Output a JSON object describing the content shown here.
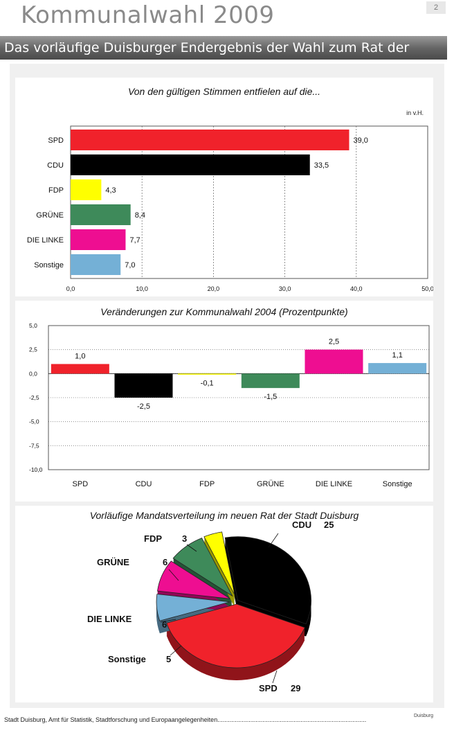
{
  "header": {
    "title": "Kommunalwahl 2009",
    "page_number": "2",
    "banner": "Das vorläufige Duisburger Endergebnis der Wahl zum Rat der Stadt"
  },
  "footer": {
    "source": "Stadt Duisburg, Amt für Statistik, Stadtforschung und Europaangelegenheiten......................................................................................",
    "logo": "Duisburg"
  },
  "colors": {
    "SPD": "#f0222b",
    "CDU": "#000000",
    "FDP": "#ffff00",
    "GRÜNE": "#3e8a5a",
    "DIE LINKE": "#ee0e91",
    "Sonstige": "#74b0d6"
  },
  "chart_data": [
    {
      "type": "bar",
      "orientation": "horizontal",
      "title": "Von den gültigen Stimmen entfielen auf die...",
      "unit_label": "in v.H.",
      "categories": [
        "SPD",
        "CDU",
        "FDP",
        "GRÜNE",
        "DIE  LINKE",
        "Sonstige"
      ],
      "values": [
        39.0,
        33.5,
        4.3,
        8.4,
        7.7,
        7.0
      ],
      "value_labels": [
        "39,0",
        "33,5",
        "4,3",
        "8,4",
        "7,7",
        "7,0"
      ],
      "xlim": [
        0,
        50
      ],
      "ticks": [
        0,
        10,
        20,
        30,
        40,
        50
      ],
      "tick_labels": [
        "0,0",
        "10,0",
        "20,0",
        "30,0",
        "40,0",
        "50,0"
      ],
      "grid": "vertical dashed"
    },
    {
      "type": "bar",
      "orientation": "vertical",
      "title": "Veränderungen zur Kommunalwahl 2004 (Prozentpunkte)",
      "categories": [
        "SPD",
        "CDU",
        "FDP",
        "GRÜNE",
        "DIE  LINKE",
        "Sonstige"
      ],
      "values": [
        1.0,
        -2.5,
        -0.1,
        -1.5,
        2.5,
        1.1
      ],
      "value_labels": [
        "1,0",
        "-2,5",
        "-0,1",
        "-1,5",
        "2,5",
        "1,1"
      ],
      "ylim": [
        -10,
        5
      ],
      "ticks": [
        5,
        2.5,
        0,
        -2.5,
        -5,
        -7.5,
        -10
      ],
      "tick_labels": [
        "5,0",
        "2,5",
        "0,0",
        "-2,5",
        "-5,0",
        "-7,5",
        "-10,0"
      ],
      "grid": "horizontal dotted"
    },
    {
      "type": "pie",
      "title": "Vorläufige Mandatsverteilung im neuen Rat der Stadt Duisburg",
      "style": "3d exploded",
      "slices": [
        {
          "name": "CDU",
          "value": 25,
          "label": "CDU",
          "value_label": "25"
        },
        {
          "name": "SPD",
          "value": 29,
          "label": "SPD",
          "value_label": "29"
        },
        {
          "name": "Sonstige",
          "value": 5,
          "label": "Sonstige",
          "value_label": "5"
        },
        {
          "name": "DIE LINKE",
          "value": 6,
          "label": "DIE  LINKE",
          "value_label": "6"
        },
        {
          "name": "GRÜNE",
          "value": 6,
          "label": "GRÜNE",
          "value_label": "6"
        },
        {
          "name": "FDP",
          "value": 3,
          "label": "FDP",
          "value_label": "3"
        }
      ]
    }
  ]
}
